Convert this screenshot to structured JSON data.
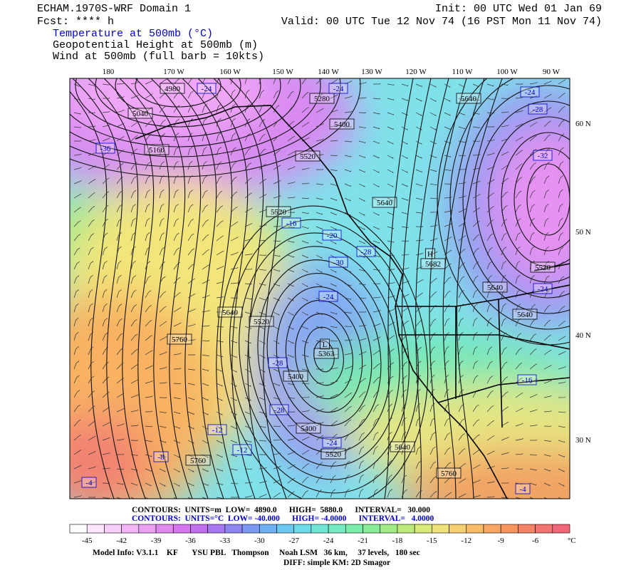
{
  "header": {
    "model": "ECHAM.1970S-WRF Domain 1",
    "init": "Init: 00 UTC Wed 01 Jan 69",
    "fcst": "Fcst: **** h",
    "valid": "Valid: 00 UTC Tue 12 Nov 74 (16 PST Mon 11 Nov 74)",
    "fields": [
      "Temperature at 500mb (°C)",
      "Geopotential Height at 500mb (m)",
      "Wind at 500mb (full barb = 10kts)"
    ]
  },
  "map": {
    "longitude_labels": [
      "180",
      "170 W",
      "160 W",
      "150 W",
      "140 W",
      "130 W",
      "120 W",
      "110 W",
      "100 W",
      "90 W"
    ],
    "latitude_labels": [
      "60 N",
      "50 N",
      "40 N",
      "30 N"
    ],
    "height_labels": [
      "4980",
      "5040",
      "5160",
      "5280",
      "5400",
      "5520",
      "5520",
      "5640",
      "5640",
      "H",
      "5682",
      "5520",
      "5640",
      "5640",
      "5640",
      "5520",
      "5760",
      "L",
      "5363",
      "5400",
      "5400",
      "5520",
      "5640",
      "5760",
      "5760"
    ],
    "temperature_labels": [
      "-24",
      "-24",
      "-24",
      "-28",
      "-32",
      "-36",
      "-16",
      "-20",
      "-28",
      "-30",
      "-24",
      "-28",
      "-28",
      "-12",
      "-12",
      "-8",
      "-4",
      "-24",
      "-16",
      "-24",
      "-4"
    ]
  },
  "footer": {
    "height_contours": "CONTOURS:  UNITS=m  LOW=  4890.0      HIGH=  5880.0      INTERVAL=   30.000",
    "temperature_contours": "CONTOURS:  UNITS=°C  LOW= -40.000      HIGH= -4.0000      INTERVAL=   4.0000",
    "colorbar_labels": [
      "-45",
      "-42",
      "-39",
      "-36",
      "-33",
      "-30",
      "-27",
      "-24",
      "-21",
      "-18",
      "-15",
      "-12",
      "-9",
      "-6"
    ],
    "colorbar_unit": "°C",
    "model_info": "Model Info: V3.1.1    KF       YSU PBL   Thompson     Noah LSM   36 km,     37 levels,   180 sec",
    "diff_info": "DIFF: simple KM: 2D Smagor"
  }
}
